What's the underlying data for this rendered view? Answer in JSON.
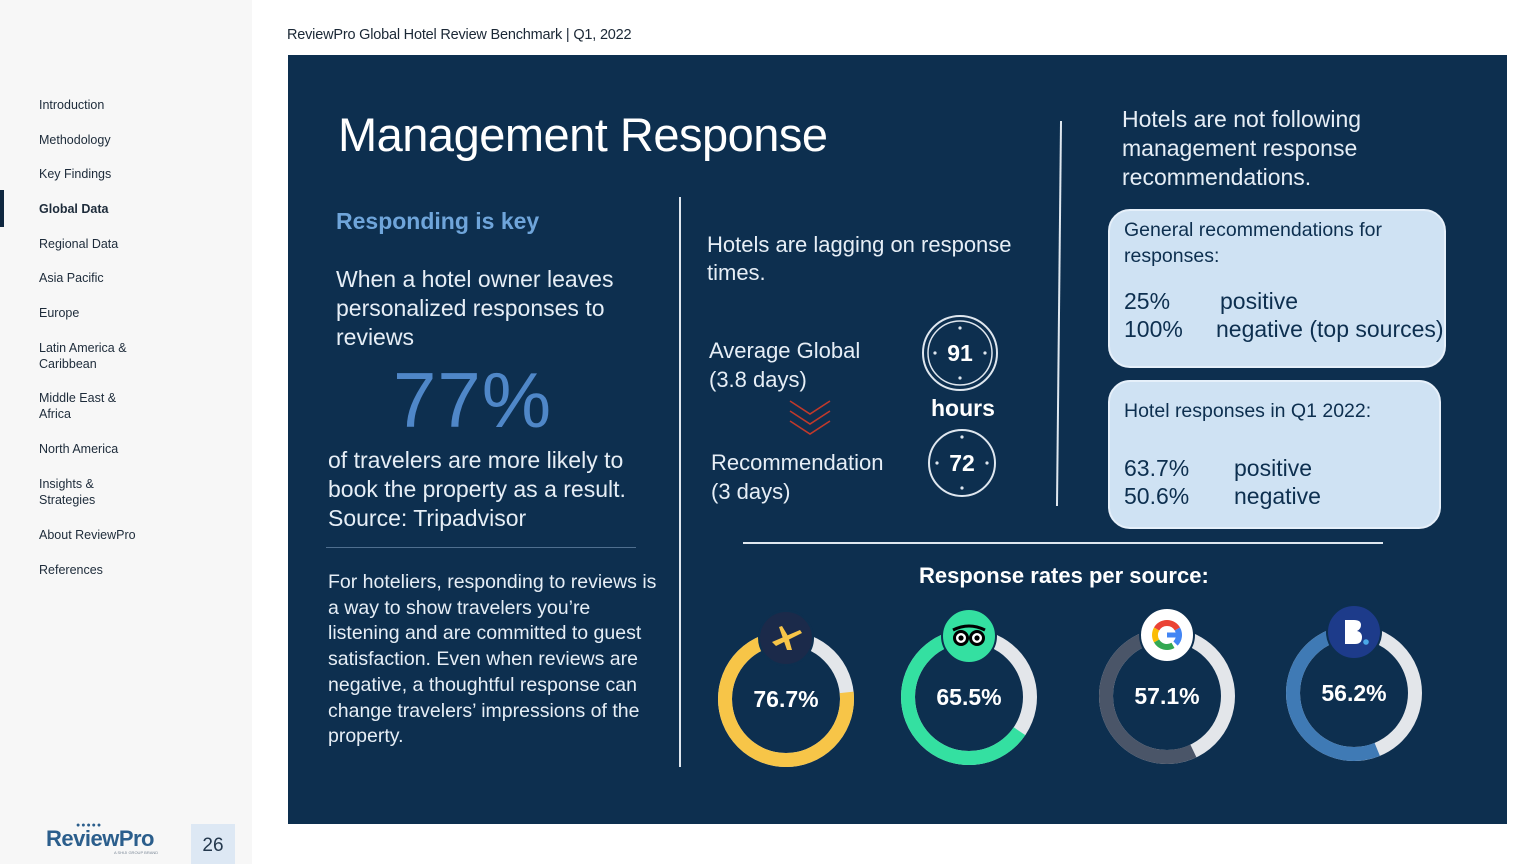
{
  "header": {
    "title": "ReviewPro Global Hotel Review Benchmark",
    "separator": "|",
    "period": "Q1, 2022"
  },
  "sidebar": {
    "items": [
      {
        "label": "Introduction",
        "active": false
      },
      {
        "label": "Methodology",
        "active": false
      },
      {
        "label": "Key Findings",
        "active": false
      },
      {
        "label": "Global Data",
        "active": true
      },
      {
        "label": "Regional Data",
        "active": false
      },
      {
        "label": "Asia Pacific",
        "active": false
      },
      {
        "label": "Europe",
        "active": false
      },
      {
        "label": "Latin America & Caribbean",
        "active": false
      },
      {
        "label": "Middle East & Africa",
        "active": false
      },
      {
        "label": "North America",
        "active": false
      },
      {
        "label": "Insights & Strategies",
        "active": false
      },
      {
        "label": "About ReviewPro",
        "active": false
      },
      {
        "label": "References",
        "active": false
      }
    ],
    "logo": {
      "name": "ReviewPro",
      "tagline": "A SHIJI GROUP BRAND"
    },
    "page_number": "26"
  },
  "main": {
    "title": "Management Response",
    "left": {
      "heading": "Responding is key",
      "intro": "When a hotel owner leaves personalized responses to reviews",
      "big_stat": "77%",
      "caption": "of travelers are more likely to book the property as a result. Source: Tripadvisor",
      "paragraph": "For hoteliers, responding to reviews is a way to show travelers you’re listening and are committed to guest satisfaction. Even when reviews are negative, a thoughtful response can change travelers’ impressions of the property."
    },
    "middle": {
      "lagging": "Hotels are lagging on response times.",
      "average_label": "Average Global (3.8 days)",
      "average_hours": "91",
      "hours_unit": "hours",
      "recommendation_label": "Recommendation (3 days)",
      "recommendation_hours": "72"
    },
    "right": {
      "statement": "Hotels are not following management response recommendations.",
      "general_box": {
        "title": "General recommendations for responses:",
        "rows": [
          {
            "value": "25%",
            "label": "positive"
          },
          {
            "value": "100%",
            "label": "negative (top sources)"
          }
        ]
      },
      "q1_box": {
        "title": "Hotel responses in Q1 2022:",
        "rows": [
          {
            "value": "63.7%",
            "label": "positive"
          },
          {
            "value": "50.6%",
            "label": "negative"
          }
        ]
      }
    },
    "rates_title": "Response rates per source:"
  },
  "colors": {
    "panel": "#0d2f4f",
    "accent_blue": "#6fa5da",
    "chevron_red": "#c0392b",
    "expedia": "#f7c548",
    "tripadvisor": "#34e0a1",
    "google": "#4a5568",
    "booking": "#3f7ab5",
    "ring_track": "#e3e6ea"
  },
  "chart_data": {
    "type": "donut",
    "title": "Response rates per source:",
    "categories": [
      "Expedia",
      "Tripadvisor",
      "Google",
      "Booking.com"
    ],
    "values": [
      76.7,
      65.5,
      57.1,
      56.2
    ],
    "labels": [
      "76.7%",
      "65.5%",
      "57.1%",
      "56.2%"
    ],
    "icons": [
      "expedia-icon",
      "tripadvisor-icon",
      "google-icon",
      "booking-icon"
    ],
    "unit": "%",
    "max": 100
  }
}
